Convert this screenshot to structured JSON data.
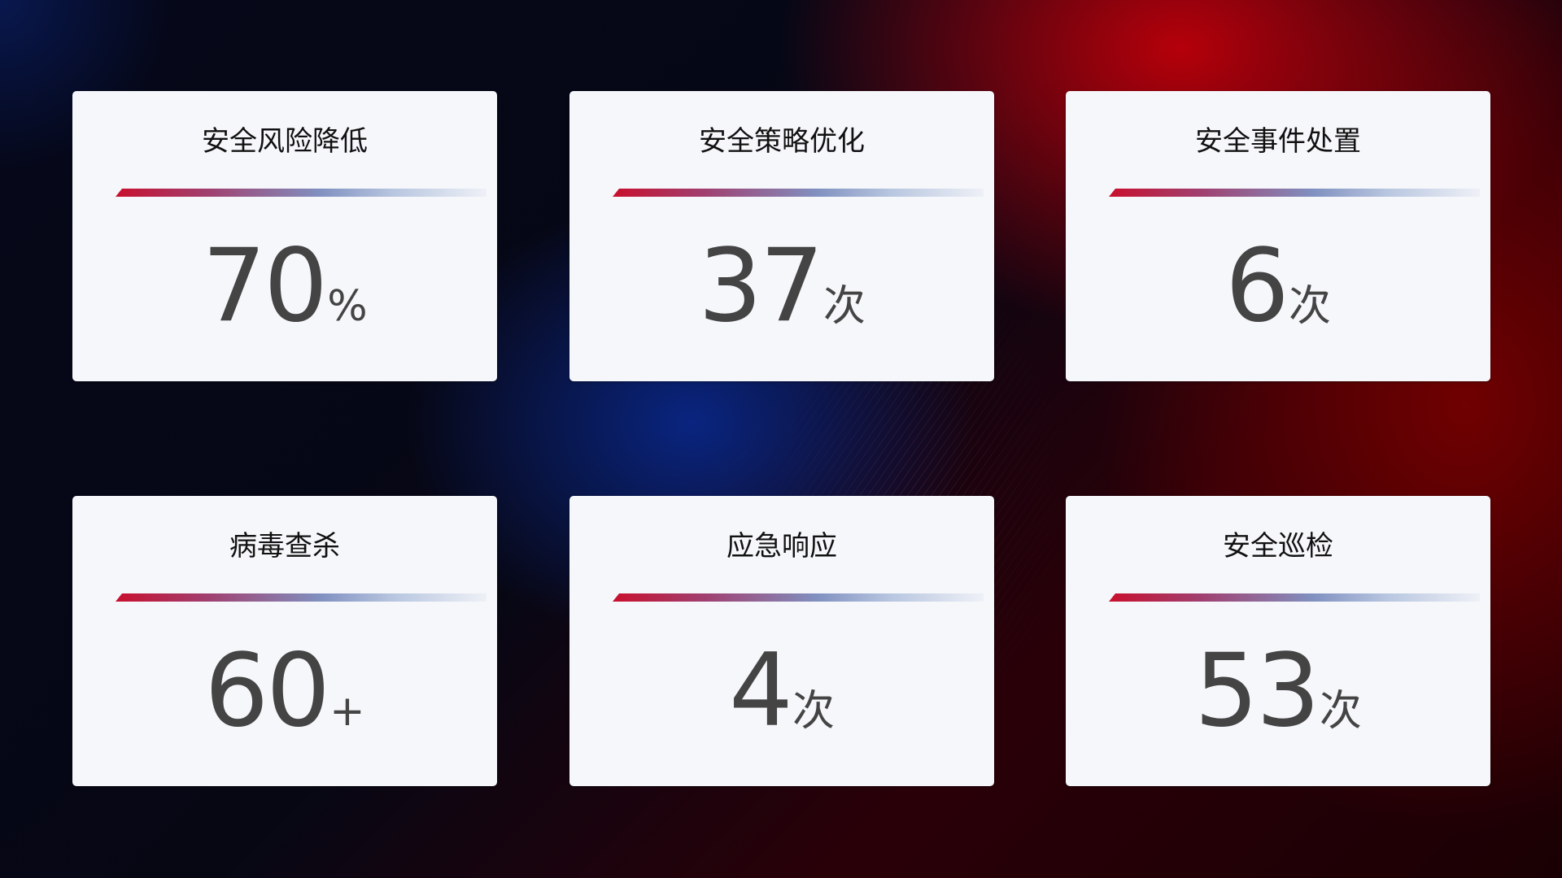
{
  "cards": [
    {
      "title": "安全风险降低",
      "value": "70",
      "unit": "%"
    },
    {
      "title": "安全策略优化",
      "value": "37",
      "unit": "次"
    },
    {
      "title": "安全事件处置",
      "value": "6",
      "unit": "次"
    },
    {
      "title": "病毒查杀",
      "value": "60",
      "unit": "+"
    },
    {
      "title": "应急响应",
      "value": "4",
      "unit": "次"
    },
    {
      "title": "安全巡检",
      "value": "53",
      "unit": "次"
    }
  ],
  "colors": {
    "accent_red": "#c8102e",
    "accent_blue": "#8090c0",
    "card_bg": "#f6f7fb",
    "value_text": "#444444"
  }
}
